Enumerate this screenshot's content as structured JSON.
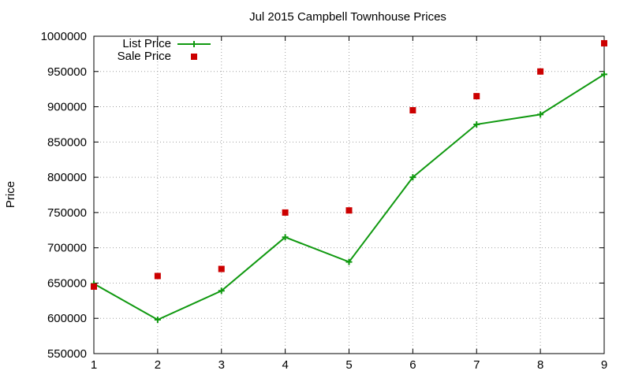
{
  "chart_data": {
    "type": "line",
    "title": "Jul 2015 Campbell Townhouse Prices",
    "xlabel": "",
    "ylabel": "Price",
    "xlim": [
      1,
      9
    ],
    "ylim": [
      550000,
      1000000
    ],
    "x_ticks": [
      "1",
      "2",
      "3",
      "4",
      "5",
      "6",
      "7",
      "8",
      "9"
    ],
    "y_ticks": [
      "550000",
      "600000",
      "650000",
      "700000",
      "750000",
      "800000",
      "850000",
      "900000",
      "950000",
      "1000000"
    ],
    "grid": true,
    "legend_position": "top-left",
    "x": [
      1,
      2,
      3,
      4,
      5,
      6,
      7,
      8,
      9
    ],
    "series": [
      {
        "name": "List Price",
        "style": "line-plus",
        "color": "#109910",
        "values": [
          649000,
          598000,
          639000,
          715000,
          680000,
          800000,
          875000,
          889000,
          946000
        ]
      },
      {
        "name": "Sale Price",
        "style": "square",
        "color": "#cc0000",
        "values": [
          645000,
          660000,
          670000,
          750000,
          753000,
          895000,
          915000,
          950000,
          990000
        ]
      }
    ]
  }
}
